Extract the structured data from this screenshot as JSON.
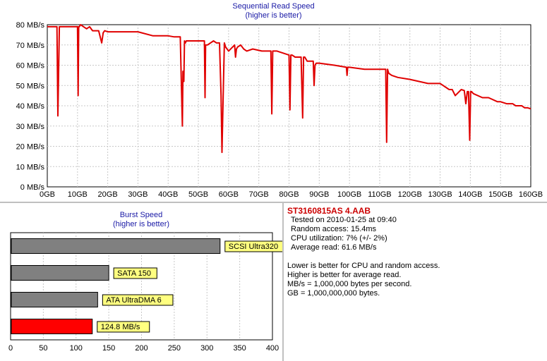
{
  "sequential": {
    "title": "Sequential Read Speed",
    "subtitle": "(higher is better)"
  },
  "burst": {
    "title": "Burst Speed",
    "subtitle": "(higher is better)"
  },
  "info": {
    "drive_name": "ST3160815AS 4.AAB",
    "lines": [
      "Tested on 2010-01-25 at 09:40",
      "Random access: 15.4ms",
      "CPU utilization: 7% (+/- 2%)",
      "Average read: 61.6 MB/s"
    ],
    "notes": [
      "Lower is better for CPU and random access.",
      "Higher is better for average read.",
      "MB/s = 1,000,000 bytes per second.",
      "GB = 1,000,000,000 bytes."
    ]
  },
  "colors": {
    "series": "#e00000",
    "grid": "#c8c8c8",
    "bar_gray": "#808080",
    "bar_red": "#ff0000",
    "label_bg": "#ffff80",
    "title_blue": "#1a1aa6"
  },
  "chart_data": [
    {
      "type": "line",
      "title": "Sequential Read Speed",
      "subtitle": "(higher is better)",
      "xlabel": "",
      "ylabel": "",
      "xlim": [
        0,
        160
      ],
      "ylim": [
        0,
        80
      ],
      "grid": true,
      "x_ticks": [
        "0GB",
        "10GB",
        "20GB",
        "30GB",
        "40GB",
        "50GB",
        "60GB",
        "70GB",
        "80GB",
        "90GB",
        "100GB",
        "110GB",
        "120GB",
        "130GB",
        "140GB",
        "150GB",
        "160GB"
      ],
      "y_ticks": [
        "0 MB/s",
        "10 MB/s",
        "20 MB/s",
        "30 MB/s",
        "40 MB/s",
        "50 MB/s",
        "60 MB/s",
        "70 MB/s",
        "80 MB/s"
      ],
      "series": [
        {
          "name": "Sequential Read",
          "x": [
            0,
            2.5,
            3.2,
            3.5,
            4,
            10,
            10.2,
            10.4,
            10.6,
            11,
            12,
            13,
            14,
            15,
            17,
            18,
            18.5,
            19,
            20,
            25,
            30,
            35,
            40,
            42,
            44,
            44.7,
            44.9,
            45.2,
            45.4,
            45.7,
            46,
            50,
            52,
            52.2,
            52.4,
            53,
            55,
            56,
            57,
            57.5,
            57.8,
            58.2,
            58.6,
            59,
            60,
            62,
            62.3,
            62.6,
            63,
            64,
            65,
            66,
            68,
            71,
            72,
            74,
            74.3,
            74.6,
            75,
            76,
            80,
            80.3,
            80.6,
            81,
            82,
            84,
            84.5,
            84.8,
            85.2,
            86,
            88,
            88.3,
            88.6,
            89,
            90,
            95,
            99,
            99.2,
            99.4,
            100,
            105,
            110,
            112,
            112.3,
            112.6,
            113,
            114,
            116,
            120,
            126,
            130,
            133,
            134,
            135,
            137,
            138,
            138.5,
            139,
            139.4,
            139.8,
            140.1,
            140.4,
            141,
            144,
            146,
            149,
            150,
            152,
            154,
            155,
            157,
            158,
            159,
            160
          ],
          "y": [
            79,
            79,
            79,
            35,
            79,
            79,
            45,
            79,
            79,
            80,
            79,
            78,
            79,
            77,
            77,
            71,
            76,
            77,
            76.5,
            76.5,
            76.5,
            74.5,
            74.5,
            74,
            74,
            30,
            57,
            52,
            72,
            71,
            72,
            72,
            72,
            44,
            70,
            70,
            72,
            71,
            71,
            45,
            17,
            45,
            71,
            69,
            67,
            70,
            64,
            68,
            69,
            70,
            68,
            67,
            68,
            67,
            67,
            67,
            36,
            67,
            67,
            67,
            65,
            38,
            65,
            65,
            64,
            64,
            34,
            64,
            64,
            62,
            62,
            50,
            60,
            61,
            61,
            60,
            59,
            55,
            59,
            59,
            58,
            58,
            58,
            22,
            58,
            56,
            55,
            54,
            53,
            51,
            51,
            48,
            48,
            45,
            48,
            47.5,
            41,
            47,
            47,
            23,
            47,
            47,
            46,
            44,
            44,
            42,
            42,
            41,
            41,
            40,
            40,
            39,
            39,
            38.5
          ]
        }
      ]
    },
    {
      "type": "bar",
      "orientation": "horizontal",
      "title": "Burst Speed",
      "subtitle": "(higher is better)",
      "xlim": [
        0,
        400
      ],
      "x_ticks": [
        "0",
        "50",
        "100",
        "150",
        "200",
        "250",
        "300",
        "350",
        "400"
      ],
      "categories": [
        "SCSI Ultra320",
        "SATA 150",
        "ATA UltraDMA 6",
        "124.8 MB/s"
      ],
      "values": [
        320,
        150,
        133,
        124.8
      ],
      "highlight_index": 3
    }
  ]
}
